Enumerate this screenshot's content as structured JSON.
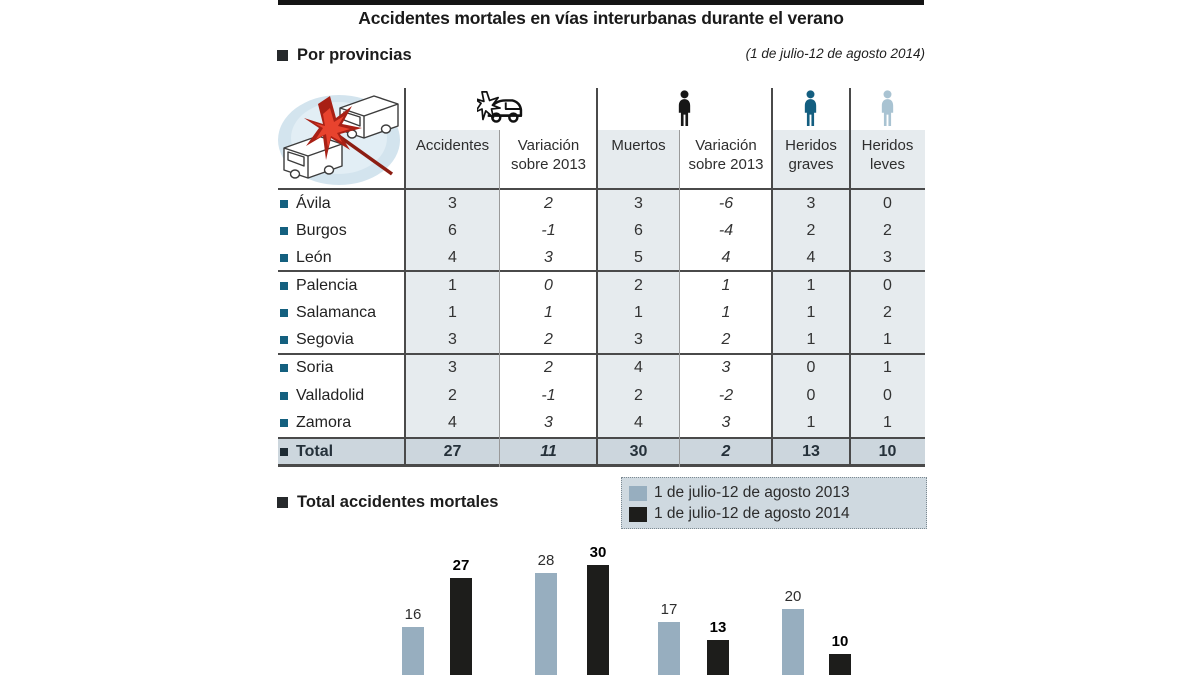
{
  "title": "Accidentes mortales en vías interurbanas durante el verano",
  "provinces_section": {
    "label": "Por provincias",
    "date_note": "(1 de julio-12 de agosto 2014)"
  },
  "table": {
    "column_group_icons": [
      "car-crash-icon",
      "person-black-icon",
      "person-darkblue-icon",
      "person-lightblue-icon"
    ],
    "columns": [
      "Accidentes",
      "Variación sobre 2013",
      "Muertos",
      "Variación sobre 2013",
      "Heridos graves",
      "Heridos leves"
    ],
    "rows": [
      {
        "name": "Ávila",
        "values": [
          "3",
          "2",
          "3",
          "-6",
          "3",
          "0"
        ]
      },
      {
        "name": "Burgos",
        "values": [
          "6",
          "-1",
          "6",
          "-4",
          "2",
          "2"
        ]
      },
      {
        "name": "León",
        "values": [
          "4",
          "3",
          "5",
          "4",
          "4",
          "3"
        ]
      },
      {
        "name": "Palencia",
        "values": [
          "1",
          "0",
          "2",
          "1",
          "1",
          "0"
        ]
      },
      {
        "name": "Salamanca",
        "values": [
          "1",
          "1",
          "1",
          "1",
          "1",
          "2"
        ]
      },
      {
        "name": "Segovia",
        "values": [
          "3",
          "2",
          "3",
          "2",
          "1",
          "1"
        ]
      },
      {
        "name": "Soria",
        "values": [
          "3",
          "2",
          "4",
          "3",
          "0",
          "1"
        ]
      },
      {
        "name": "Valladolid",
        "values": [
          "2",
          "-1",
          "2",
          "-2",
          "0",
          "0"
        ]
      },
      {
        "name": "Zamora",
        "values": [
          "4",
          "3",
          "4",
          "3",
          "1",
          "1"
        ]
      }
    ],
    "total_row": {
      "name": "Total",
      "values": [
        "27",
        "11",
        "30",
        "2",
        "13",
        "10"
      ]
    }
  },
  "totals_section": {
    "label": "Total accidentes mortales"
  },
  "legend": {
    "items": [
      {
        "label": "1 de julio-12 de agosto 2013",
        "color": "#97aebf"
      },
      {
        "label": "1 de julio-12 de agosto 2014",
        "color": "#1d1d1b"
      }
    ]
  },
  "chart_data": {
    "type": "bar",
    "title": "Total accidentes mortales",
    "series": [
      {
        "name": "1 de julio-12 de agosto 2013",
        "color": "#97aebf",
        "values": [
          16,
          28,
          17,
          20
        ]
      },
      {
        "name": "1 de julio-12 de agosto 2014",
        "color": "#1d1d1b",
        "values": [
          27,
          30,
          13,
          10
        ]
      }
    ],
    "value_labels_visible": true,
    "category_axis_visible": false,
    "legend_position": "top-right",
    "ylim": [
      0,
      32
    ]
  },
  "colors": {
    "shaded_column": "#e6ebee",
    "total_row_bg": "#ccd6dd",
    "province_bullet": "#14607f",
    "bar_2013": "#97aebf",
    "bar_2014": "#1d1d1b",
    "legend_box_bg": "#cfd9e0"
  }
}
